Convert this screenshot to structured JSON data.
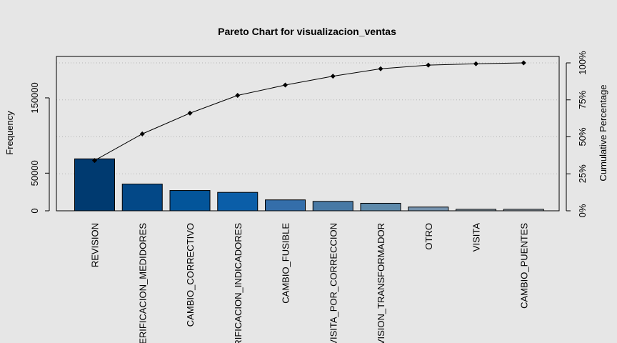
{
  "chart_data": {
    "type": "bar",
    "title": "Pareto Chart for visualizacion_ventas",
    "ylabel": "Frequency",
    "y2label": "Cumulative Percentage",
    "ylim": [
      0,
      205000
    ],
    "y_ticks": [
      0,
      50000,
      150000
    ],
    "y_tick_labels": [
      "0",
      "50000",
      "150000"
    ],
    "y2_ticks": [
      0,
      25,
      50,
      75,
      100
    ],
    "y2_tick_labels": [
      "0%",
      "25%",
      "50%",
      "75%",
      "100%"
    ],
    "categories": [
      "REVISION",
      "VERIFICACION_MEDIDORES",
      "CAMBIO_CORRECTIVO",
      "VERIFICACION_INDICADORES",
      "CAMBIO_FUSIBLE",
      "VISITA_POR_CORRECCION",
      "REVISION_TRANSFORMADOR",
      "OTRO",
      "VISITA",
      "CAMBIO_PUENTES"
    ],
    "values": [
      69000,
      35500,
      27000,
      24500,
      14500,
      12500,
      10000,
      5000,
      2000,
      2000
    ],
    "cumulative_percent": [
      34,
      52,
      66,
      78,
      85,
      91,
      96,
      98.5,
      99.4,
      100
    ],
    "bar_colors": [
      "#003a70",
      "#034887",
      "#03559a",
      "#0b5ea8",
      "#346eaa",
      "#4879a5",
      "#5e8aab",
      "#7592ad",
      "#8c9fae",
      "#9ba9b5"
    ],
    "grid": "horizontal dotted at cumulative ticks",
    "legend": "none"
  }
}
